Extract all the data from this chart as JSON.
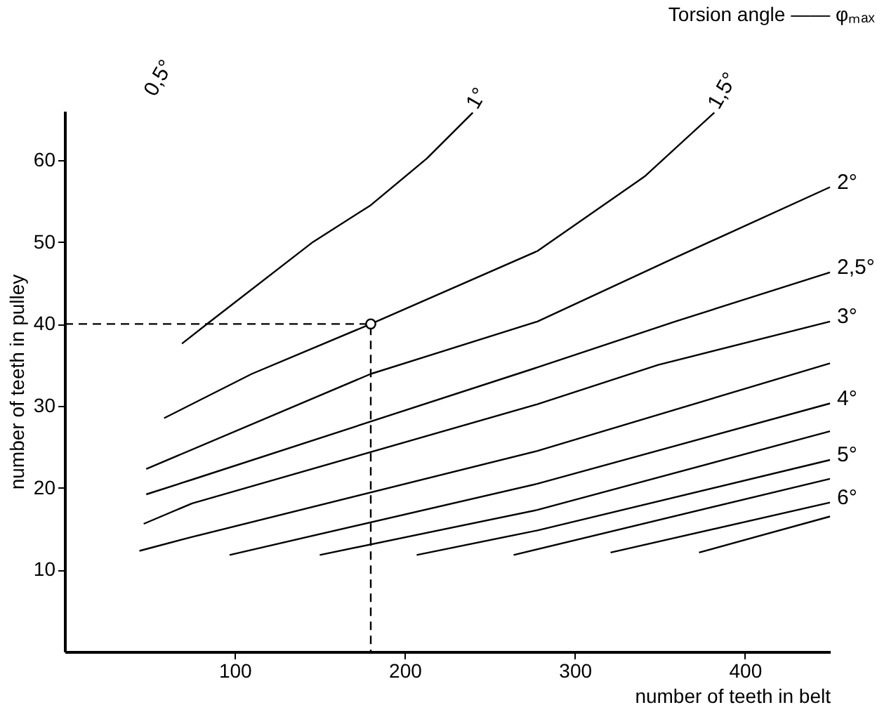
{
  "chart_data": {
    "type": "line",
    "xlabel": "number of teeth in belt",
    "ylabel": "number of teeth in pulley",
    "xlim": [
      0,
      450
    ],
    "ylim": [
      0,
      66
    ],
    "xticks": [
      100,
      200,
      300,
      400
    ],
    "yticks": [
      10,
      20,
      30,
      40,
      50,
      60
    ],
    "annotations": [
      "Torsion angle —— φₘₐₓ",
      "0,5°"
    ],
    "series": [
      {
        "name": "1°",
        "color": "#000000",
        "x": [
          69,
          85,
          146,
          180,
          213,
          240
        ],
        "values": [
          37.6,
          40.2,
          50,
          54.5,
          60.2,
          65.8
        ]
      },
      {
        "name": "1,5°",
        "color": "#000000",
        "x": [
          58.5,
          110,
          180,
          278,
          341,
          382
        ],
        "values": [
          28.5,
          33.9,
          40,
          48.9,
          58,
          65.8
        ]
      },
      {
        "name": "2°",
        "color": "#000000",
        "x": [
          48,
          180,
          278,
          359,
          450
        ],
        "values": [
          22.3,
          33.9,
          40.3,
          48.1,
          56.7
        ]
      },
      {
        "name": "2,5°",
        "color": "#000000",
        "x": [
          48,
          75,
          278,
          359,
          450
        ],
        "values": [
          19.2,
          21,
          34.7,
          40.3,
          46.3
        ]
      },
      {
        "name": "3°",
        "color": "#000000",
        "x": [
          46.5,
          75,
          278,
          349,
          450
        ],
        "values": [
          15.6,
          18.1,
          30.2,
          35,
          40.3
        ]
      },
      {
        "color": "#000000",
        "x": [
          44,
          75,
          278,
          450
        ],
        "values": [
          12.3,
          14,
          24.5,
          35.2
        ]
      },
      {
        "name": "4°",
        "color": "#000000",
        "x": [
          97,
          278,
          450
        ],
        "values": [
          11.8,
          20.5,
          30.3
        ]
      },
      {
        "color": "#000000",
        "x": [
          150,
          278,
          450
        ],
        "values": [
          11.8,
          17.3,
          26.9
        ]
      },
      {
        "name": "5°",
        "color": "#000000",
        "x": [
          207,
          278,
          450
        ],
        "values": [
          11.8,
          14.8,
          23.4
        ]
      },
      {
        "color": "#000000",
        "x": [
          264,
          450
        ],
        "values": [
          11.8,
          21.1
        ]
      },
      {
        "name": "6°",
        "color": "#000000",
        "x": [
          321,
          450
        ],
        "values": [
          12.1,
          18.2
        ]
      },
      {
        "color": "#000000",
        "x": [
          373,
          450
        ],
        "values": [
          12.1,
          16.5
        ]
      },
      {
        "type": "line",
        "line_style": "dashed",
        "color": "#000000",
        "x": [
          0,
          180,
          180
        ],
        "values": [
          40,
          40,
          0
        ]
      },
      {
        "type": "scatter",
        "marker": "circle",
        "color": "#000000",
        "x": [
          180
        ],
        "values": [
          40
        ]
      }
    ]
  }
}
